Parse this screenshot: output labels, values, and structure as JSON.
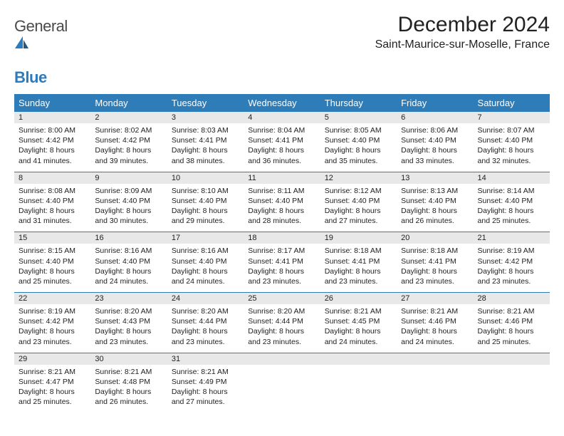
{
  "brand": {
    "word1": "General",
    "word2": "Blue"
  },
  "title": "December 2024",
  "location": "Saint-Maurice-sur-Moselle, France",
  "colors": {
    "header_bg": "#2e7db9",
    "header_fg": "#ffffff",
    "daynum_bg": "#e8e8e8",
    "rule": "#2e7db9"
  },
  "weekdays": [
    "Sunday",
    "Monday",
    "Tuesday",
    "Wednesday",
    "Thursday",
    "Friday",
    "Saturday"
  ],
  "weeks": [
    [
      {
        "n": "1",
        "sr": "8:00 AM",
        "ss": "4:42 PM",
        "dl": "8 hours and 41 minutes."
      },
      {
        "n": "2",
        "sr": "8:02 AM",
        "ss": "4:42 PM",
        "dl": "8 hours and 39 minutes."
      },
      {
        "n": "3",
        "sr": "8:03 AM",
        "ss": "4:41 PM",
        "dl": "8 hours and 38 minutes."
      },
      {
        "n": "4",
        "sr": "8:04 AM",
        "ss": "4:41 PM",
        "dl": "8 hours and 36 minutes."
      },
      {
        "n": "5",
        "sr": "8:05 AM",
        "ss": "4:40 PM",
        "dl": "8 hours and 35 minutes."
      },
      {
        "n": "6",
        "sr": "8:06 AM",
        "ss": "4:40 PM",
        "dl": "8 hours and 33 minutes."
      },
      {
        "n": "7",
        "sr": "8:07 AM",
        "ss": "4:40 PM",
        "dl": "8 hours and 32 minutes."
      }
    ],
    [
      {
        "n": "8",
        "sr": "8:08 AM",
        "ss": "4:40 PM",
        "dl": "8 hours and 31 minutes."
      },
      {
        "n": "9",
        "sr": "8:09 AM",
        "ss": "4:40 PM",
        "dl": "8 hours and 30 minutes."
      },
      {
        "n": "10",
        "sr": "8:10 AM",
        "ss": "4:40 PM",
        "dl": "8 hours and 29 minutes."
      },
      {
        "n": "11",
        "sr": "8:11 AM",
        "ss": "4:40 PM",
        "dl": "8 hours and 28 minutes."
      },
      {
        "n": "12",
        "sr": "8:12 AM",
        "ss": "4:40 PM",
        "dl": "8 hours and 27 minutes."
      },
      {
        "n": "13",
        "sr": "8:13 AM",
        "ss": "4:40 PM",
        "dl": "8 hours and 26 minutes."
      },
      {
        "n": "14",
        "sr": "8:14 AM",
        "ss": "4:40 PM",
        "dl": "8 hours and 25 minutes."
      }
    ],
    [
      {
        "n": "15",
        "sr": "8:15 AM",
        "ss": "4:40 PM",
        "dl": "8 hours and 25 minutes."
      },
      {
        "n": "16",
        "sr": "8:16 AM",
        "ss": "4:40 PM",
        "dl": "8 hours and 24 minutes."
      },
      {
        "n": "17",
        "sr": "8:16 AM",
        "ss": "4:40 PM",
        "dl": "8 hours and 24 minutes."
      },
      {
        "n": "18",
        "sr": "8:17 AM",
        "ss": "4:41 PM",
        "dl": "8 hours and 23 minutes."
      },
      {
        "n": "19",
        "sr": "8:18 AM",
        "ss": "4:41 PM",
        "dl": "8 hours and 23 minutes."
      },
      {
        "n": "20",
        "sr": "8:18 AM",
        "ss": "4:41 PM",
        "dl": "8 hours and 23 minutes."
      },
      {
        "n": "21",
        "sr": "8:19 AM",
        "ss": "4:42 PM",
        "dl": "8 hours and 23 minutes."
      }
    ],
    [
      {
        "n": "22",
        "sr": "8:19 AM",
        "ss": "4:42 PM",
        "dl": "8 hours and 23 minutes."
      },
      {
        "n": "23",
        "sr": "8:20 AM",
        "ss": "4:43 PM",
        "dl": "8 hours and 23 minutes."
      },
      {
        "n": "24",
        "sr": "8:20 AM",
        "ss": "4:44 PM",
        "dl": "8 hours and 23 minutes."
      },
      {
        "n": "25",
        "sr": "8:20 AM",
        "ss": "4:44 PM",
        "dl": "8 hours and 23 minutes."
      },
      {
        "n": "26",
        "sr": "8:21 AM",
        "ss": "4:45 PM",
        "dl": "8 hours and 24 minutes."
      },
      {
        "n": "27",
        "sr": "8:21 AM",
        "ss": "4:46 PM",
        "dl": "8 hours and 24 minutes."
      },
      {
        "n": "28",
        "sr": "8:21 AM",
        "ss": "4:46 PM",
        "dl": "8 hours and 25 minutes."
      }
    ],
    [
      {
        "n": "29",
        "sr": "8:21 AM",
        "ss": "4:47 PM",
        "dl": "8 hours and 25 minutes."
      },
      {
        "n": "30",
        "sr": "8:21 AM",
        "ss": "4:48 PM",
        "dl": "8 hours and 26 minutes."
      },
      {
        "n": "31",
        "sr": "8:21 AM",
        "ss": "4:49 PM",
        "dl": "8 hours and 27 minutes."
      },
      null,
      null,
      null,
      null
    ]
  ],
  "labels": {
    "sunrise": "Sunrise:",
    "sunset": "Sunset:",
    "daylight": "Daylight:"
  }
}
